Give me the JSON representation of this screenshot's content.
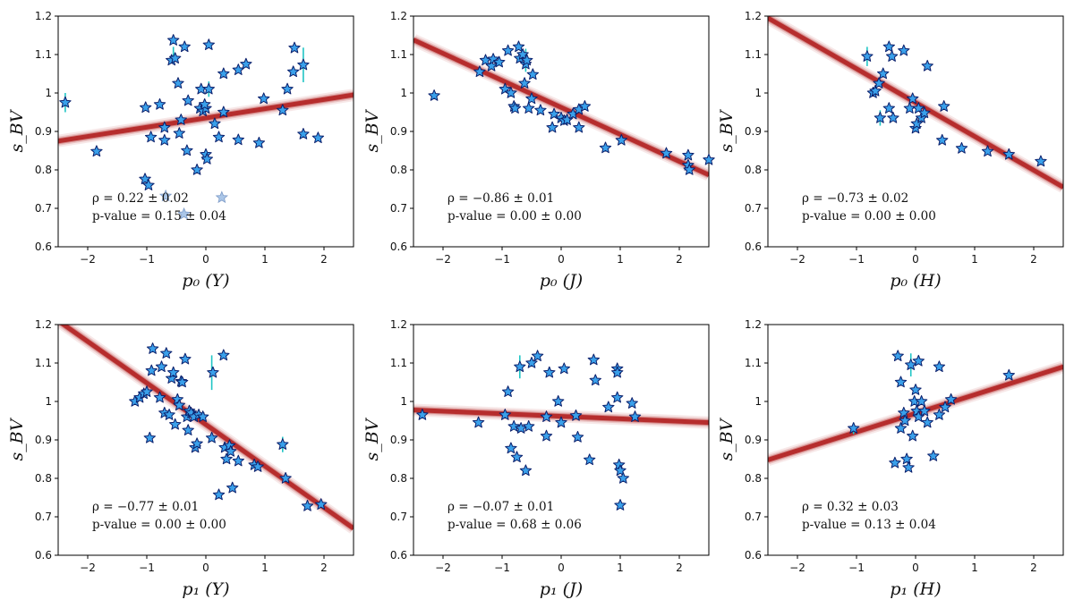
{
  "figure": {
    "star_fill": "#3aa0ea",
    "star_edge": "#0b1f6b",
    "faded_star_fill": "#aac6e8",
    "errorbar_color": "#20c5c5",
    "band_color": "#b22222"
  },
  "chart_data": [
    {
      "type": "scatter",
      "xlabel": "p₀ (Y)",
      "ylabel": "s_BV",
      "xlim": [
        -2.5,
        2.5
      ],
      "ylim": [
        0.6,
        1.2
      ],
      "xticks": [
        -2,
        -1,
        0,
        1,
        2
      ],
      "yticks": [
        0.6,
        0.7,
        0.8,
        0.9,
        1.0,
        1.1,
        1.2
      ],
      "annotation_rho": "ρ = 0.22 ± 0.02",
      "annotation_p": "p-value = 0.15 ± 0.04",
      "fit_line": {
        "x": [
          -2.5,
          2.5
        ],
        "y": [
          0.875,
          0.995
        ]
      },
      "points": [
        [
          -2.38,
          0.975
        ],
        [
          -1.85,
          0.848
        ],
        [
          -1.02,
          0.962
        ],
        [
          -0.93,
          0.885
        ],
        [
          -0.78,
          0.97
        ],
        [
          -0.7,
          0.91
        ],
        [
          -0.7,
          0.877
        ],
        [
          -0.58,
          1.085
        ],
        [
          -0.55,
          1.137
        ],
        [
          -0.52,
          1.09
        ],
        [
          -0.47,
          1.025
        ],
        [
          -0.45,
          0.895
        ],
        [
          -0.42,
          0.93
        ],
        [
          -0.36,
          1.12
        ],
        [
          -0.32,
          0.85
        ],
        [
          -0.3,
          0.98
        ],
        [
          -0.15,
          0.8
        ],
        [
          -0.1,
          0.96
        ],
        [
          -0.08,
          1.01
        ],
        [
          -0.05,
          0.953
        ],
        [
          0.0,
          0.84
        ],
        [
          0.02,
          0.828
        ],
        [
          0.05,
          1.125
        ],
        [
          0.05,
          1.01
        ],
        [
          0.15,
          0.92
        ],
        [
          0.22,
          0.885
        ],
        [
          0.3,
          1.05
        ],
        [
          0.3,
          0.95
        ],
        [
          0.55,
          0.878
        ],
        [
          0.55,
          1.06
        ],
        [
          0.68,
          1.075
        ],
        [
          0.9,
          0.87
        ],
        [
          0.98,
          0.985
        ],
        [
          1.3,
          0.955
        ],
        [
          1.38,
          1.01
        ],
        [
          1.48,
          1.055
        ],
        [
          1.5,
          1.117
        ],
        [
          1.65,
          0.893
        ],
        [
          1.65,
          1.073
        ],
        [
          1.9,
          0.883
        ],
        [
          -1.03,
          0.776
        ],
        [
          -0.97,
          0.76
        ],
        [
          0.0,
          0.96
        ],
        [
          -0.02,
          0.97
        ]
      ],
      "faded_points": [
        [
          -0.68,
          0.732
        ],
        [
          0.27,
          0.728
        ],
        [
          -0.37,
          0.685
        ]
      ],
      "error_bars": [
        [
          -2.38,
          0.975,
          0.025
        ],
        [
          1.65,
          1.073,
          0.045
        ],
        [
          -0.55,
          1.1,
          0.02
        ],
        [
          0.05,
          1.01,
          0.02
        ]
      ]
    },
    {
      "type": "scatter",
      "xlabel": "p₀ (J)",
      "ylabel": "s_BV",
      "xlim": [
        -2.5,
        2.5
      ],
      "ylim": [
        0.6,
        1.2
      ],
      "xticks": [
        -2,
        -1,
        0,
        1,
        2
      ],
      "yticks": [
        0.6,
        0.7,
        0.8,
        0.9,
        1.0,
        1.1,
        1.2
      ],
      "annotation_rho": "ρ = −0.86 ± 0.01",
      "annotation_p": "p-value = 0.00 ± 0.00",
      "fit_line": {
        "x": [
          -2.5,
          2.5
        ],
        "y": [
          1.138,
          0.787
        ]
      },
      "points": [
        [
          -2.15,
          0.993
        ],
        [
          -1.38,
          1.055
        ],
        [
          -1.28,
          1.085
        ],
        [
          -1.18,
          1.07
        ],
        [
          -1.15,
          1.088
        ],
        [
          -1.05,
          1.08
        ],
        [
          -0.95,
          1.01
        ],
        [
          -0.9,
          1.11
        ],
        [
          -0.85,
          1.0
        ],
        [
          -0.8,
          0.965
        ],
        [
          -0.78,
          0.96
        ],
        [
          -0.72,
          1.12
        ],
        [
          -0.7,
          1.09
        ],
        [
          -0.65,
          1.1
        ],
        [
          -0.62,
          1.025
        ],
        [
          -0.6,
          1.075
        ],
        [
          -0.58,
          1.085
        ],
        [
          -0.55,
          0.96
        ],
        [
          -0.5,
          0.985
        ],
        [
          -0.48,
          1.048
        ],
        [
          -0.35,
          0.955
        ],
        [
          -0.15,
          0.91
        ],
        [
          -0.12,
          0.945
        ],
        [
          0.0,
          0.935
        ],
        [
          0.05,
          0.928
        ],
        [
          0.1,
          0.93
        ],
        [
          0.2,
          0.945
        ],
        [
          0.3,
          0.957
        ],
        [
          0.3,
          0.91
        ],
        [
          0.4,
          0.965
        ],
        [
          0.75,
          0.857
        ],
        [
          1.02,
          0.877
        ],
        [
          1.78,
          0.843
        ],
        [
          2.15,
          0.838
        ],
        [
          2.15,
          0.812
        ],
        [
          2.17,
          0.8
        ],
        [
          2.5,
          0.826
        ]
      ],
      "faded_points": [],
      "error_bars": [
        [
          -0.6,
          1.085,
          0.03
        ]
      ]
    },
    {
      "type": "scatter",
      "xlabel": "p₀ (H)",
      "ylabel": "s_BV",
      "xlim": [
        -2.5,
        2.5
      ],
      "ylim": [
        0.6,
        1.2
      ],
      "xticks": [
        -2,
        -1,
        0,
        1,
        2
      ],
      "yticks": [
        0.6,
        0.7,
        0.8,
        0.9,
        1.0,
        1.1,
        1.2
      ],
      "annotation_rho": "ρ = −0.73 ± 0.02",
      "annotation_p": "p-value = 0.00 ± 0.00",
      "fit_line": {
        "x": [
          -2.5,
          2.5
        ],
        "y": [
          1.195,
          0.755
        ]
      },
      "points": [
        [
          -0.82,
          1.095
        ],
        [
          -0.72,
          1.0
        ],
        [
          -0.68,
          1.005
        ],
        [
          -0.62,
          1.025
        ],
        [
          -0.6,
          0.935
        ],
        [
          -0.55,
          1.05
        ],
        [
          -0.45,
          1.12
        ],
        [
          -0.45,
          0.96
        ],
        [
          -0.4,
          1.095
        ],
        [
          -0.38,
          0.935
        ],
        [
          -0.2,
          1.11
        ],
        [
          -0.1,
          0.96
        ],
        [
          -0.05,
          0.985
        ],
        [
          0.0,
          0.908
        ],
        [
          0.02,
          0.92
        ],
        [
          0.05,
          0.96
        ],
        [
          0.1,
          0.935
        ],
        [
          0.15,
          0.948
        ],
        [
          0.2,
          1.07
        ],
        [
          0.45,
          0.877
        ],
        [
          0.48,
          0.965
        ],
        [
          0.78,
          0.856
        ],
        [
          1.22,
          0.848
        ],
        [
          1.58,
          0.84
        ],
        [
          2.12,
          0.822
        ]
      ],
      "faded_points": [],
      "error_bars": [
        [
          -0.82,
          1.095,
          0.025
        ],
        [
          -0.6,
          0.935,
          0.02
        ]
      ]
    },
    {
      "type": "scatter",
      "xlabel": "p₁ (Y)",
      "ylabel": "s_BV",
      "xlim": [
        -2.5,
        2.5
      ],
      "ylim": [
        0.6,
        1.2
      ],
      "xticks": [
        -2,
        -1,
        0,
        1,
        2
      ],
      "yticks": [
        0.6,
        0.7,
        0.8,
        0.9,
        1.0,
        1.1,
        1.2
      ],
      "annotation_rho": "ρ = −0.77 ± 0.01",
      "annotation_p": "p-value = 0.00 ± 0.00",
      "fit_line": {
        "x": [
          -2.5,
          2.5
        ],
        "y": [
          1.21,
          0.67
        ]
      },
      "points": [
        [
          -1.2,
          1.0
        ],
        [
          -1.12,
          1.01
        ],
        [
          -1.05,
          1.02
        ],
        [
          -1.0,
          1.025
        ],
        [
          -0.95,
          0.905
        ],
        [
          -0.92,
          1.08
        ],
        [
          -0.9,
          1.137
        ],
        [
          -0.78,
          1.01
        ],
        [
          -0.75,
          1.09
        ],
        [
          -0.7,
          0.97
        ],
        [
          -0.67,
          1.125
        ],
        [
          -0.62,
          0.965
        ],
        [
          -0.58,
          1.06
        ],
        [
          -0.55,
          1.075
        ],
        [
          -0.52,
          0.94
        ],
        [
          -0.48,
          1.005
        ],
        [
          -0.45,
          0.99
        ],
        [
          -0.42,
          1.052
        ],
        [
          -0.4,
          1.05
        ],
        [
          -0.35,
          1.11
        ],
        [
          -0.32,
          0.96
        ],
        [
          -0.3,
          0.925
        ],
        [
          -0.28,
          0.975
        ],
        [
          -0.25,
          0.97
        ],
        [
          -0.2,
          0.96
        ],
        [
          -0.18,
          0.88
        ],
        [
          -0.15,
          0.89
        ],
        [
          -0.12,
          0.965
        ],
        [
          -0.05,
          0.96
        ],
        [
          0.1,
          0.905
        ],
        [
          0.12,
          1.075
        ],
        [
          0.22,
          0.757
        ],
        [
          0.3,
          1.12
        ],
        [
          0.32,
          0.88
        ],
        [
          0.35,
          0.85
        ],
        [
          0.4,
          0.885
        ],
        [
          0.42,
          0.87
        ],
        [
          0.45,
          0.775
        ],
        [
          0.55,
          0.845
        ],
        [
          0.82,
          0.835
        ],
        [
          0.88,
          0.83
        ],
        [
          1.3,
          0.888
        ],
        [
          1.35,
          0.8
        ],
        [
          1.72,
          0.728
        ],
        [
          1.95,
          0.732
        ]
      ],
      "faded_points": [],
      "error_bars": [
        [
          0.1,
          1.075,
          0.045
        ],
        [
          1.3,
          0.888,
          0.02
        ]
      ]
    },
    {
      "type": "scatter",
      "xlabel": "p₁ (J)",
      "ylabel": "s_BV",
      "xlim": [
        -2.5,
        2.5
      ],
      "ylim": [
        0.6,
        1.2
      ],
      "xticks": [
        -2,
        -1,
        0,
        1,
        2
      ],
      "yticks": [
        0.6,
        0.7,
        0.8,
        0.9,
        1.0,
        1.1,
        1.2
      ],
      "annotation_rho": "ρ = −0.07 ± 0.01",
      "annotation_p": "p-value = 0.68 ± 0.06",
      "fit_line": {
        "x": [
          -2.5,
          2.5
        ],
        "y": [
          0.978,
          0.945
        ]
      },
      "points": [
        [
          -2.35,
          0.965
        ],
        [
          -1.4,
          0.945
        ],
        [
          -0.95,
          0.965
        ],
        [
          -0.9,
          1.025
        ],
        [
          -0.85,
          0.878
        ],
        [
          -0.8,
          0.935
        ],
        [
          -0.75,
          0.855
        ],
        [
          -0.7,
          1.09
        ],
        [
          -0.68,
          0.93
        ],
        [
          -0.6,
          0.82
        ],
        [
          -0.55,
          0.935
        ],
        [
          -0.5,
          1.1
        ],
        [
          -0.4,
          1.118
        ],
        [
          -0.25,
          0.91
        ],
        [
          -0.25,
          0.96
        ],
        [
          -0.2,
          1.075
        ],
        [
          -0.05,
          1.0
        ],
        [
          0.0,
          0.945
        ],
        [
          0.05,
          1.085
        ],
        [
          0.25,
          0.963
        ],
        [
          0.28,
          0.907
        ],
        [
          0.48,
          0.848
        ],
        [
          0.55,
          1.108
        ],
        [
          0.58,
          1.055
        ],
        [
          0.8,
          0.985
        ],
        [
          0.95,
          1.085
        ],
        [
          0.95,
          1.01
        ],
        [
          0.95,
          1.075
        ],
        [
          0.98,
          0.835
        ],
        [
          1.0,
          0.82
        ],
        [
          1.0,
          0.73
        ],
        [
          1.05,
          0.8
        ],
        [
          1.2,
          0.995
        ],
        [
          1.25,
          0.96
        ]
      ],
      "faded_points": [],
      "error_bars": [
        [
          -0.7,
          1.09,
          0.03
        ]
      ]
    },
    {
      "type": "scatter",
      "xlabel": "p₁ (H)",
      "ylabel": "s_BV",
      "xlim": [
        -2.5,
        2.5
      ],
      "ylim": [
        0.6,
        1.2
      ],
      "xticks": [
        -2,
        -1,
        0,
        1,
        2
      ],
      "yticks": [
        0.6,
        0.7,
        0.8,
        0.9,
        1.0,
        1.1,
        1.2
      ],
      "annotation_rho": "ρ = 0.32 ± 0.03",
      "annotation_p": "p-value = 0.13 ± 0.04",
      "fit_line": {
        "x": [
          -2.5,
          2.5
        ],
        "y": [
          0.848,
          1.09
        ]
      },
      "points": [
        [
          -1.05,
          0.93
        ],
        [
          -0.35,
          0.84
        ],
        [
          -0.3,
          1.118
        ],
        [
          -0.25,
          0.93
        ],
        [
          -0.25,
          1.05
        ],
        [
          -0.2,
          0.97
        ],
        [
          -0.18,
          0.95
        ],
        [
          -0.15,
          0.85
        ],
        [
          -0.12,
          0.828
        ],
        [
          -0.08,
          1.095
        ],
        [
          -0.05,
          0.91
        ],
        [
          -0.02,
          1.0
        ],
        [
          0.0,
          1.03
        ],
        [
          0.02,
          0.975
        ],
        [
          0.05,
          1.105
        ],
        [
          0.05,
          0.96
        ],
        [
          0.1,
          1.0
        ],
        [
          0.15,
          0.975
        ],
        [
          0.2,
          0.945
        ],
        [
          0.3,
          0.858
        ],
        [
          0.4,
          1.09
        ],
        [
          0.4,
          0.965
        ],
        [
          0.5,
          0.985
        ],
        [
          0.6,
          1.005
        ],
        [
          1.58,
          1.068
        ]
      ],
      "faded_points": [],
      "error_bars": [
        [
          -0.08,
          1.095,
          0.03
        ],
        [
          -1.05,
          0.93,
          0.015
        ]
      ]
    }
  ]
}
